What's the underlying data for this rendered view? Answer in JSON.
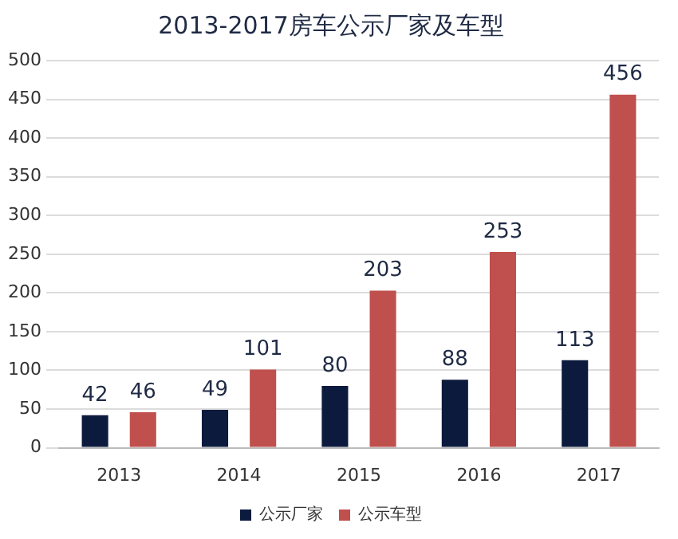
{
  "chart_data": {
    "type": "bar",
    "title": "2013-2017房车公示厂家及车型",
    "categories": [
      "2013",
      "2014",
      "2015",
      "2016",
      "2017"
    ],
    "series": [
      {
        "name": "公示厂家",
        "color": "#0c1a3e",
        "values": [
          42,
          49,
          80,
          88,
          113
        ]
      },
      {
        "name": "公示车型",
        "color": "#c0504d",
        "values": [
          46,
          101,
          203,
          253,
          456
        ]
      }
    ],
    "ylim": [
      0,
      500
    ],
    "yticks": [
      0,
      50,
      100,
      150,
      200,
      250,
      300,
      350,
      400,
      450,
      500
    ],
    "grid": "y",
    "legend": "bottom",
    "data_labels": true
  }
}
